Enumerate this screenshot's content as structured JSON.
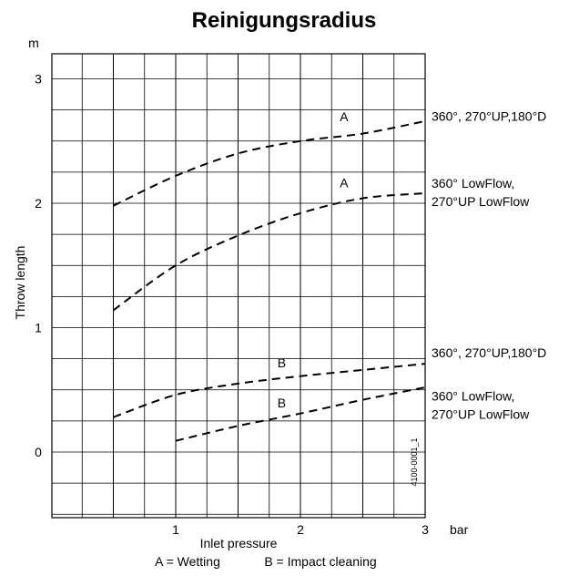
{
  "chart_data": {
    "type": "line",
    "title": "Reinigungsradius",
    "xlabel": "Inlet pressure",
    "ylabel": "Throw length",
    "x_unit": "bar",
    "y_unit": "m",
    "x_ticks": [
      "1",
      "2",
      "3"
    ],
    "y_ticks": [
      "0",
      "1",
      "2",
      "3"
    ],
    "xlim": [
      0,
      3
    ],
    "ylim": [
      -0.5,
      3.2
    ],
    "grid": true,
    "line_style": "dashed",
    "series": [
      {
        "curve_label": "A",
        "end_label": [
          "360°, 270°UP,180°D"
        ],
        "x": [
          0.5,
          1.0,
          1.5,
          2.0,
          2.5,
          3.0
        ],
        "y": [
          1.98,
          2.22,
          2.4,
          2.5,
          2.56,
          2.66
        ]
      },
      {
        "curve_label": "A",
        "end_label": [
          "360° LowFlow,",
          "270°UP LowFlow"
        ],
        "x": [
          0.5,
          1.0,
          1.5,
          2.0,
          2.5,
          3.0
        ],
        "y": [
          1.14,
          1.5,
          1.74,
          1.92,
          2.04,
          2.08
        ]
      },
      {
        "curve_label": "B",
        "end_label": [
          "360°, 270°UP,180°D"
        ],
        "x": [
          0.5,
          1.0,
          1.5,
          2.0,
          2.5,
          3.0
        ],
        "y": [
          0.28,
          0.46,
          0.55,
          0.61,
          0.66,
          0.71
        ]
      },
      {
        "curve_label": "B",
        "end_label": [
          "360° LowFlow,",
          "270°UP LowFlow"
        ],
        "x": [
          1.0,
          1.5,
          2.0,
          2.5,
          3.0
        ],
        "y": [
          0.09,
          0.21,
          0.31,
          0.42,
          0.52
        ]
      }
    ],
    "legend": [
      "A = Wetting",
      "B = Impact cleaning"
    ],
    "side_code": "4100-0001_1"
  }
}
